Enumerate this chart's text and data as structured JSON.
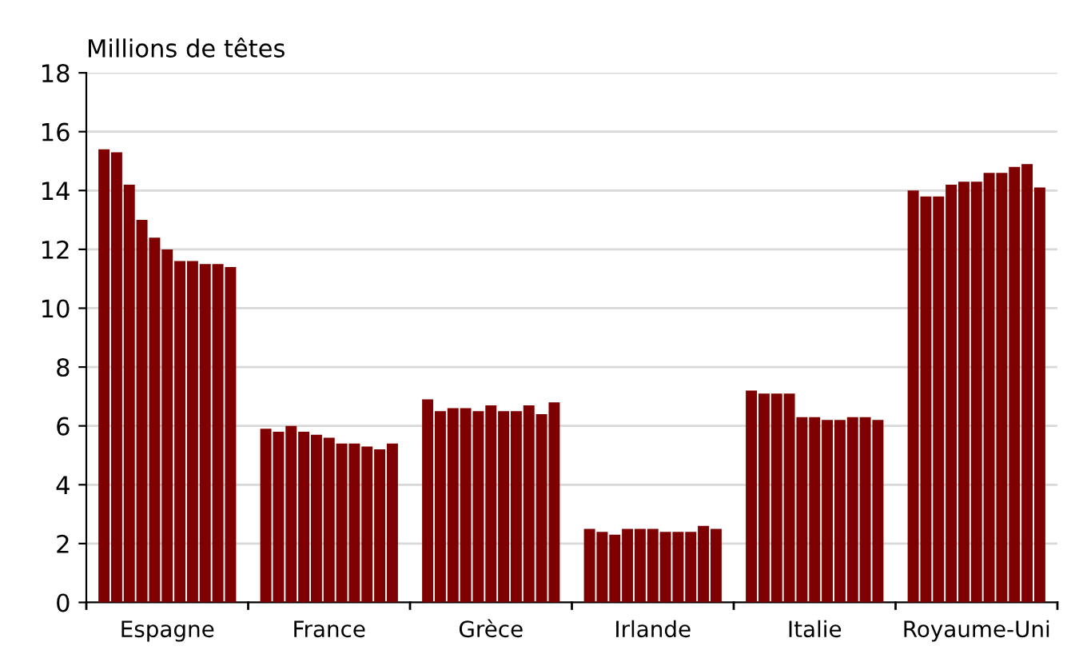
{
  "chart_data": {
    "type": "bar",
    "ylabel": "Millions de têtes",
    "categories": [
      "Espagne",
      "France",
      "Grèce",
      "Irlande",
      "Italie",
      "Royaume-Uni"
    ],
    "series": [
      {
        "color": "#7f0000",
        "values": [
          15.4,
          5.9,
          6.9,
          2.5,
          7.2,
          14.0
        ]
      },
      {
        "color": "#7f0000",
        "values": [
          15.3,
          5.8,
          6.5,
          2.4,
          7.1,
          13.8
        ]
      },
      {
        "color": "#7f0000",
        "values": [
          14.2,
          6.0,
          6.6,
          2.3,
          7.1,
          13.8
        ]
      },
      {
        "color": "#7f0000",
        "values": [
          13.0,
          5.8,
          6.6,
          2.5,
          7.1,
          14.2
        ]
      },
      {
        "color": "#7f0000",
        "values": [
          12.4,
          5.7,
          6.5,
          2.5,
          6.3,
          14.3
        ]
      },
      {
        "color": "#7f0000",
        "values": [
          12.0,
          5.6,
          6.7,
          2.5,
          6.3,
          14.3
        ]
      },
      {
        "color": "#7f0000",
        "values": [
          11.6,
          5.4,
          6.5,
          2.4,
          6.2,
          14.6
        ]
      },
      {
        "color": "#7f0000",
        "values": [
          11.6,
          5.4,
          6.5,
          2.4,
          6.2,
          14.6
        ]
      },
      {
        "color": "#7f0000",
        "values": [
          11.5,
          5.3,
          6.7,
          2.4,
          6.3,
          14.8
        ]
      },
      {
        "color": "#7f0000",
        "values": [
          11.5,
          5.2,
          6.4,
          2.6,
          6.3,
          14.9
        ]
      },
      {
        "color": "#7f0000",
        "values": [
          11.4,
          5.4,
          6.8,
          2.5,
          6.2,
          14.1
        ]
      }
    ],
    "ylim": [
      0,
      18
    ],
    "yticks": [
      0,
      2,
      4,
      6,
      8,
      10,
      12,
      14,
      16,
      18
    ],
    "grid": "y"
  }
}
